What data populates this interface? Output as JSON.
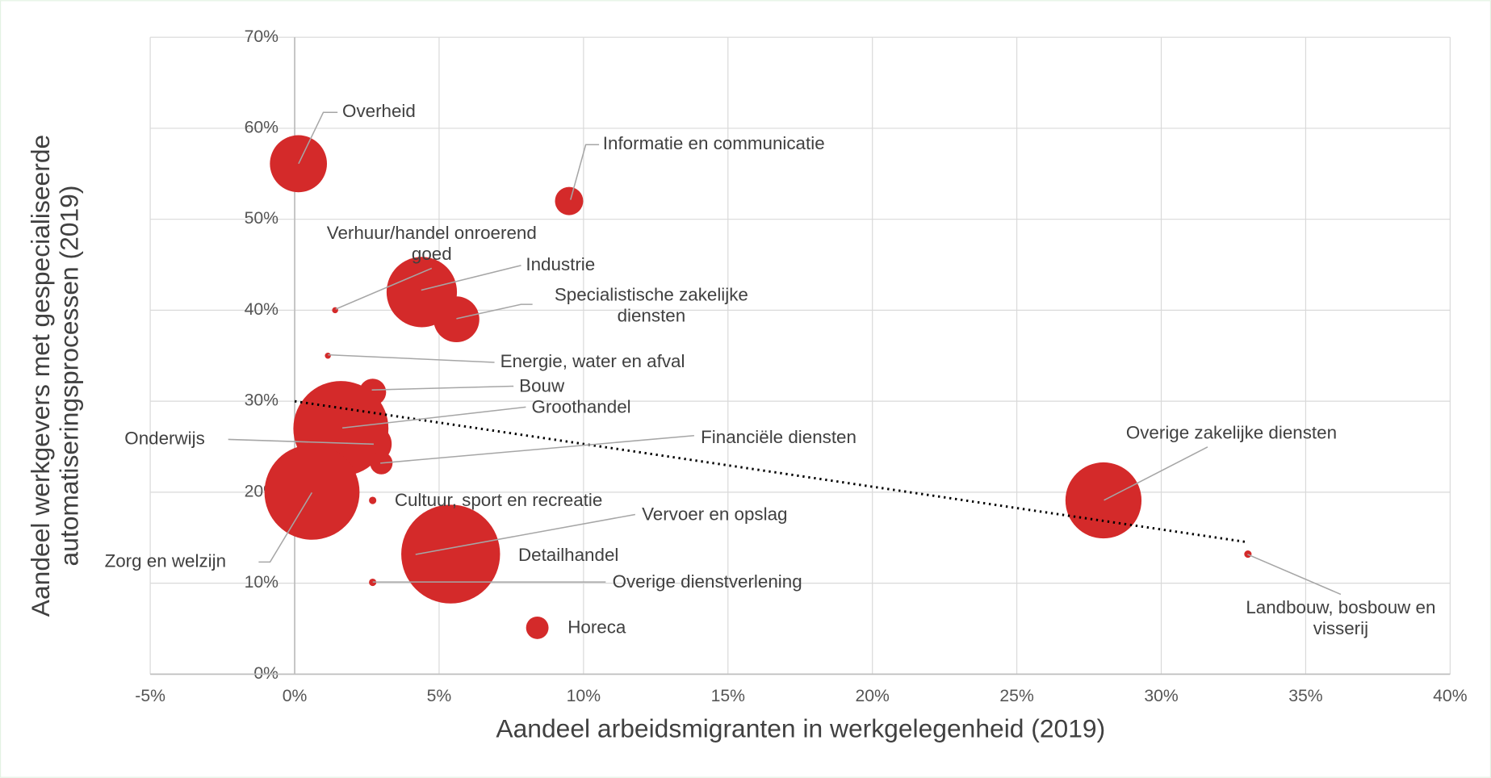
{
  "chart_data": {
    "type": "bubble",
    "xlabel": "Aandeel arbeidsmigranten in werkgelegenheid (2019)",
    "ylabel": "Aandeel werkgevers met gespecialiseerde\nautomatiseringsprocessen (2019)",
    "color": "#d42a2a",
    "grid": true,
    "xlim": [
      -5,
      40
    ],
    "ylim": [
      0,
      70
    ],
    "xticks": [
      {
        "value": -5,
        "label": "-5%"
      },
      {
        "value": 0,
        "label": "0%"
      },
      {
        "value": 5,
        "label": "5%"
      },
      {
        "value": 10,
        "label": "10%"
      },
      {
        "value": 15,
        "label": "15%"
      },
      {
        "value": 20,
        "label": "20%"
      },
      {
        "value": 25,
        "label": "25%"
      },
      {
        "value": 30,
        "label": "30%"
      },
      {
        "value": 35,
        "label": "35%"
      },
      {
        "value": 40,
        "label": "40%"
      }
    ],
    "yticks": [
      {
        "value": 0,
        "label": "0%"
      },
      {
        "value": 10,
        "label": "10%"
      },
      {
        "value": 20,
        "label": "20%"
      },
      {
        "value": 30,
        "label": "30%"
      },
      {
        "value": 40,
        "label": "40%"
      },
      {
        "value": 50,
        "label": "50%"
      },
      {
        "value": 60,
        "label": "60%"
      },
      {
        "value": 70,
        "label": "70%"
      }
    ],
    "names": [
      "Overheid",
      "Informatie en communicatie",
      "Verhuur/handel onroerend\ngoed",
      "Industrie",
      "Specialistische zakelijke\ndiensten",
      "Energie, water en afval",
      "Bouw",
      "Groothandel",
      "Onderwijs",
      "Financiële diensten",
      "Zorg en welzijn",
      "Cultuur, sport en recreatie",
      "Vervoer en opslag",
      "Detailhandel",
      "Overige dienstverlening",
      "Horeca",
      "Overige zakelijke diensten",
      "Landbouw, bosbouw en\nvisserij"
    ],
    "x": [
      0.13,
      9.5,
      1.4,
      4.4,
      5.6,
      1.15,
      2.7,
      1.6,
      2.7,
      3.0,
      0.6,
      2.7,
      4.2,
      5.4,
      2.7,
      8.4,
      28,
      33
    ],
    "values": [
      56.1,
      52,
      40,
      42,
      39,
      35,
      31,
      27,
      25.3,
      23.2,
      20,
      19.1,
      13.2,
      13.2,
      10.1,
      5.1,
      19.1,
      13.2
    ],
    "sizes": [
      9,
      2.2,
      0.1,
      13.7,
      5.8,
      0.1,
      2,
      25,
      4,
      1.4,
      25,
      0.15,
      2.2,
      27,
      0.15,
      1.4,
      16,
      0.15
    ],
    "trendline": {
      "x": [
        0,
        33
      ],
      "y": [
        30,
        14.5
      ]
    }
  }
}
